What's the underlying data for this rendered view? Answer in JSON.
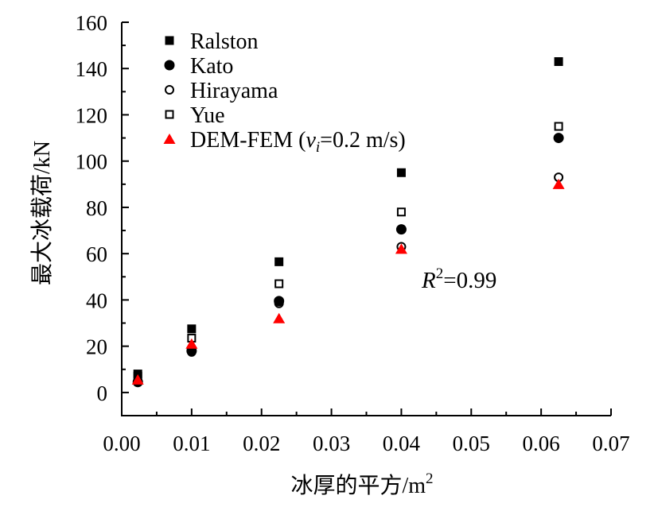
{
  "chart_data": {
    "type": "scatter",
    "title": "",
    "xlabel": "冰厚的平方/m",
    "xlabel_sup": "2",
    "ylabel": "最大冰载荷/kN",
    "xlim": [
      0.0,
      0.07
    ],
    "ylim": [
      -10,
      160
    ],
    "xticks": [
      "0.00",
      "0.01",
      "0.02",
      "0.03",
      "0.04",
      "0.05",
      "0.06",
      "0.07"
    ],
    "yticks": [
      "0",
      "20",
      "40",
      "60",
      "80",
      "100",
      "120",
      "140",
      "160"
    ],
    "legend_position": "top-left",
    "annotation": {
      "prefix": "R",
      "sup": "2",
      "suffix": "=0.99"
    },
    "series": [
      {
        "name": "Ralston",
        "marker": "square-filled",
        "color": "#000000",
        "x": [
          0.0023,
          0.01,
          0.0225,
          0.04,
          0.0625
        ],
        "y": [
          8,
          27.5,
          56.5,
          95,
          143
        ]
      },
      {
        "name": "Kato",
        "marker": "circle-filled",
        "color": "#000000",
        "x": [
          0.0023,
          0.01,
          0.0225,
          0.04,
          0.0625
        ],
        "y": [
          4.5,
          18,
          39.5,
          70.5,
          110
        ]
      },
      {
        "name": "Hirayama",
        "marker": "circle-open",
        "color": "#000000",
        "x": [
          0.0023,
          0.01,
          0.0225,
          0.04,
          0.0625
        ],
        "y": [
          5,
          17.5,
          38.5,
          63,
          93
        ]
      },
      {
        "name": "Yue",
        "marker": "square-open",
        "color": "#000000",
        "x": [
          0.0023,
          0.01,
          0.0225,
          0.04,
          0.0625
        ],
        "y": [
          7,
          23.5,
          47,
          78,
          115
        ]
      },
      {
        "name": "DEM-FEM",
        "legend_parts": {
          "prefix": "DEM-FEM (",
          "var": "v",
          "sub": "i",
          "suffix": "=0.2 m/s)"
        },
        "marker": "triangle-filled",
        "color": "#ff0000",
        "x": [
          0.0023,
          0.01,
          0.0225,
          0.04,
          0.0625
        ],
        "y": [
          5.5,
          21,
          32,
          62,
          90
        ]
      }
    ]
  }
}
